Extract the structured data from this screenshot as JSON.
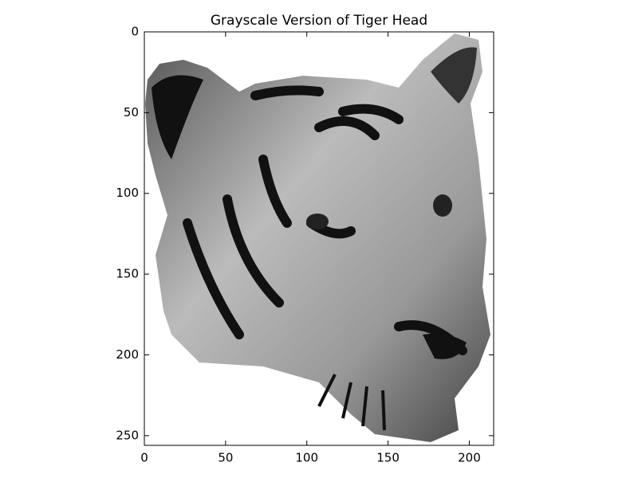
{
  "chart_data": {
    "type": "image",
    "title": "Grayscale Version of Tiger Head",
    "xlim": [
      0,
      215
    ],
    "ylim": [
      256,
      0
    ],
    "xticks": [
      0,
      50,
      100,
      150,
      200
    ],
    "yticks": [
      0,
      50,
      100,
      150,
      200,
      250
    ],
    "colormap": "gray"
  }
}
